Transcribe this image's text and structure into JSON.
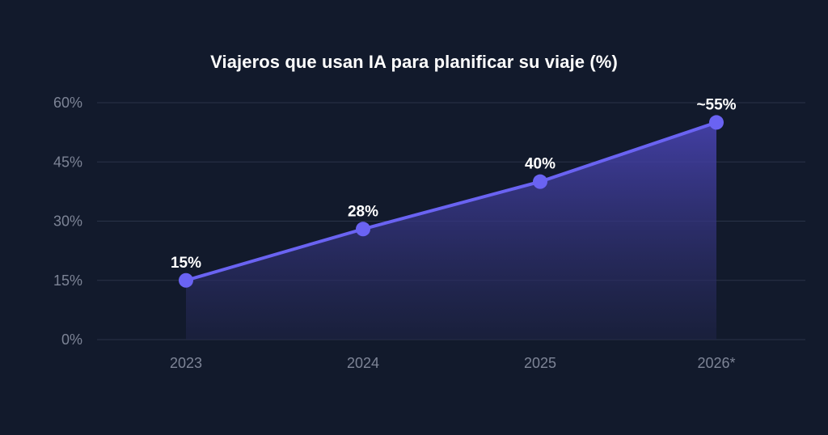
{
  "chart_data": {
    "type": "area",
    "title": "Viajeros que usan IA para planificar su viaje (%)",
    "categories": [
      "2023",
      "2024",
      "2025",
      "2026*"
    ],
    "values": [
      15,
      28,
      40,
      55
    ],
    "data_labels": [
      "15%",
      "28%",
      "40%",
      "~55%"
    ],
    "y_ticks": [
      {
        "value": 0,
        "label": "0%"
      },
      {
        "value": 15,
        "label": "15%"
      },
      {
        "value": 30,
        "label": "30%"
      },
      {
        "value": 45,
        "label": "45%"
      },
      {
        "value": 60,
        "label": "60%"
      }
    ],
    "ylim": [
      0,
      60
    ],
    "grid": true,
    "xlabel": "",
    "ylabel": "",
    "colors": {
      "line": "#6a63f2",
      "marker": "#6a63f2",
      "fill_top": "#4b45b8",
      "fill_bottom": "#1f2448"
    }
  }
}
